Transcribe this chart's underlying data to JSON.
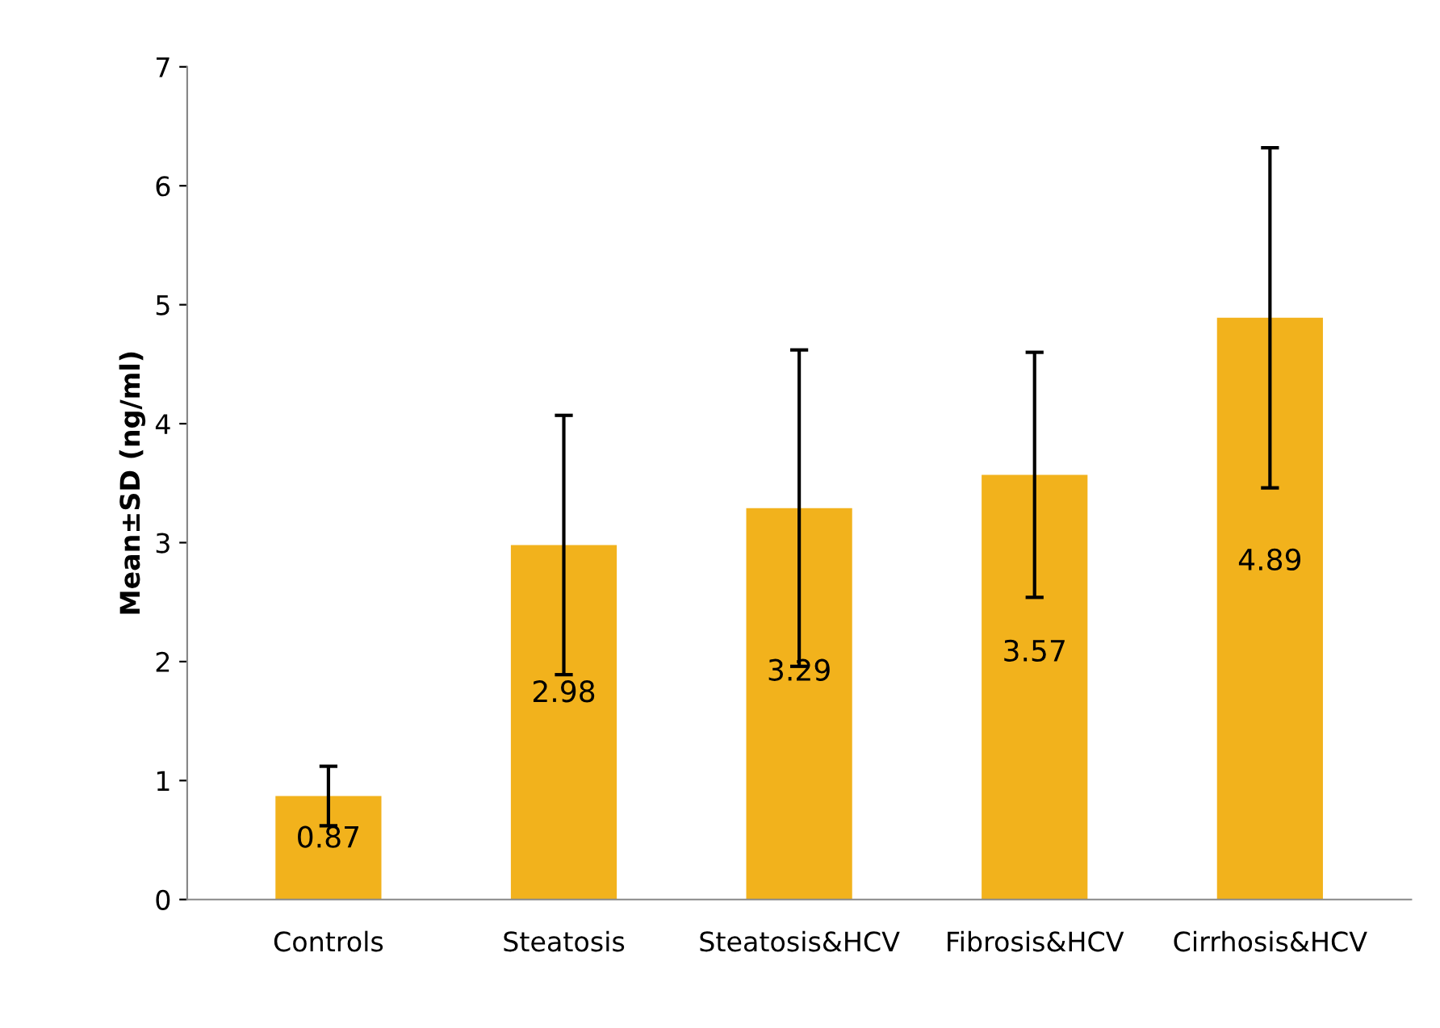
{
  "chart_data": {
    "type": "bar",
    "categories": [
      "Controls",
      "Steatosis",
      "Steatosis&HCV",
      "Fibrosis&HCV",
      "Cirrhosis&HCV"
    ],
    "values": [
      0.87,
      2.98,
      3.29,
      3.57,
      4.89
    ],
    "errors": [
      0.25,
      1.09,
      1.33,
      1.03,
      1.43
    ],
    "color": "#f2b21c",
    "ylabel": "Mean±SD (ng/ml)",
    "ylim": [
      0,
      7
    ],
    "yticks": [
      0,
      1,
      2,
      3,
      4,
      5,
      6,
      7
    ],
    "data_labels": true,
    "grid": false
  }
}
